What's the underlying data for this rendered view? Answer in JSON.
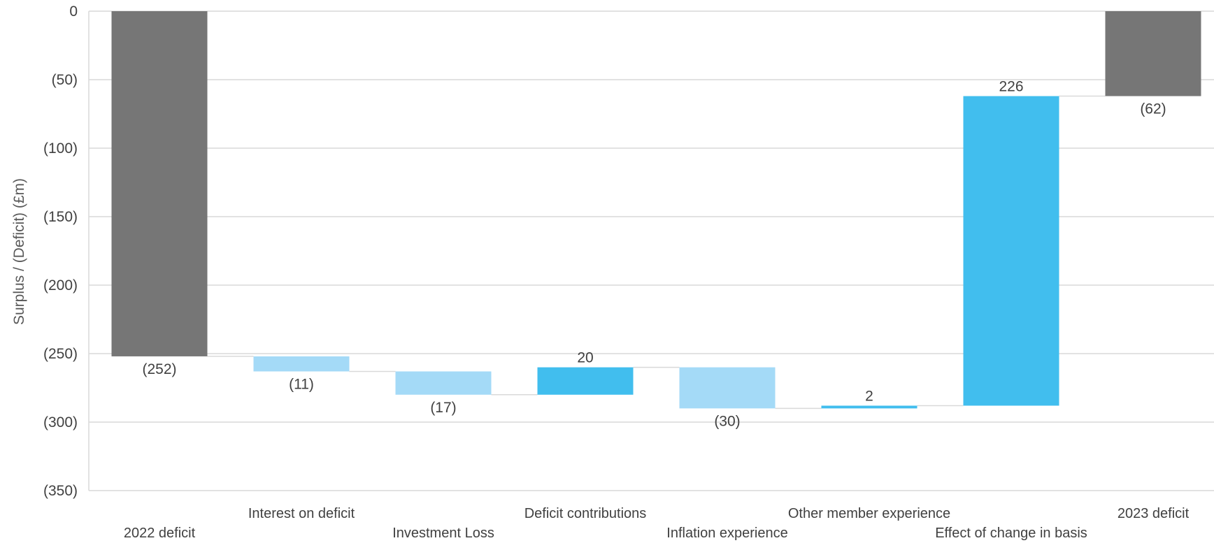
{
  "chart_data": {
    "type": "waterfall",
    "ylabel": "Surplus / (Deficit) (£m)",
    "ylim": [
      -350,
      0
    ],
    "yticks": [
      0,
      -50,
      -100,
      -150,
      -200,
      -250,
      -300,
      -350
    ],
    "ytick_labels": [
      "0",
      "(50)",
      "(100)",
      "(150)",
      "(200)",
      "(250)",
      "(300)",
      "(350)"
    ],
    "grid": true,
    "categories": [
      "2022 deficit",
      "Interest on deficit",
      "Investment Loss",
      "Deficit contributions",
      "Inflation experience",
      "Other member experience",
      "Effect of change in basis",
      "2023 deficit"
    ],
    "bars": [
      {
        "category": "2022 deficit",
        "kind": "total",
        "start": 0,
        "end": -252,
        "label": "(252)",
        "label_position": "below"
      },
      {
        "category": "Interest on deficit",
        "kind": "decrease",
        "start": -252,
        "end": -263,
        "label": "(11)",
        "label_position": "below"
      },
      {
        "category": "Investment Loss",
        "kind": "decrease",
        "start": -263,
        "end": -280,
        "label": "(17)",
        "label_position": "below"
      },
      {
        "category": "Deficit contributions",
        "kind": "increase",
        "start": -280,
        "end": -260,
        "label": "20",
        "label_position": "above"
      },
      {
        "category": "Inflation experience",
        "kind": "decrease",
        "start": -260,
        "end": -290,
        "label": "(30)",
        "label_position": "below"
      },
      {
        "category": "Other member experience",
        "kind": "increase",
        "start": -290,
        "end": -288,
        "label": "2",
        "label_position": "above"
      },
      {
        "category": "Effect of change in basis",
        "kind": "increase",
        "start": -288,
        "end": -62,
        "label": "226",
        "label_position": "above"
      },
      {
        "category": "2023 deficit",
        "kind": "total",
        "start": 0,
        "end": -62,
        "label": "(62)",
        "label_position": "below"
      }
    ],
    "colors": {
      "total": "#767676",
      "decrease": "#a4daf7",
      "increase": "#41beee",
      "grid": "#d9d9d9",
      "connector": "#d9d9d9",
      "text": "#404040"
    }
  }
}
